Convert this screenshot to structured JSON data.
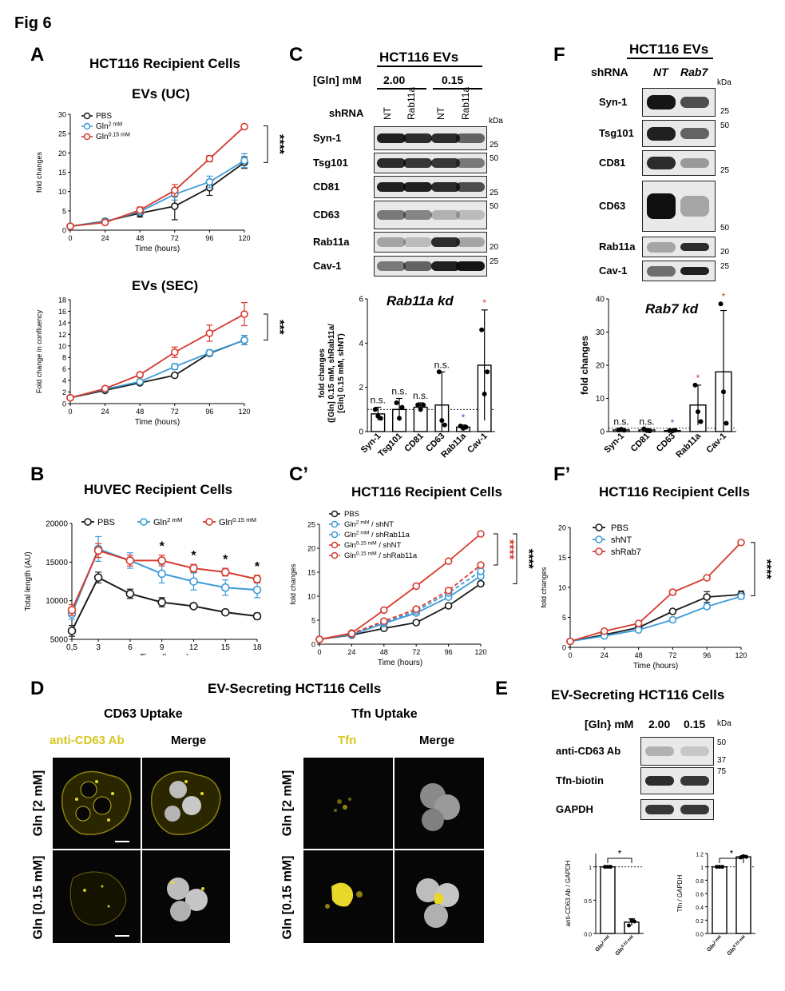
{
  "figure_title": "Fig 6",
  "colors": {
    "pbs": "#1a1a1a",
    "gln2": "#3c9ad6",
    "gln015": "#d63a2f",
    "blue_star": "#3b4fc4"
  },
  "panelA": {
    "label": "A",
    "title": "HCT116 Recipient Cells",
    "uc": {
      "subtitle": "EVs (UC)",
      "sig": "****"
    },
    "sec": {
      "subtitle": "EVs (SEC)",
      "sig": "***"
    }
  },
  "panelB": {
    "label": "B",
    "title": "HUVEC Recipient Cells"
  },
  "panelC": {
    "label": "C",
    "header": "HCT116 EVs",
    "gln_label": "[Gln] mM",
    "gln_values": [
      "2.00",
      "0.15"
    ],
    "shrna_label": "shRNA",
    "lanes": [
      "NT",
      "Rab11a",
      "NT",
      "Rab11a"
    ],
    "kda": "kDa",
    "blots": [
      "Syn-1",
      "Tsg101",
      "CD81",
      "CD63",
      "Rab11a",
      "Cav-1"
    ],
    "markers": [
      "25",
      "50",
      "25",
      "50",
      "20",
      "25"
    ]
  },
  "panelC2": {
    "label": "C’",
    "title": "HCT116 Recipient Cells"
  },
  "panelF": {
    "label": "F",
    "header": "HCT116 EVs",
    "shrna_label": "shRNA",
    "lanes": [
      "NT",
      "Rab7"
    ],
    "kda": "kDa",
    "blots": [
      "Syn-1",
      "Tsg101",
      "CD81",
      "CD63",
      "Rab11a",
      "Cav-1"
    ],
    "markers": [
      "25",
      "50",
      "25",
      "50",
      "20",
      "25"
    ]
  },
  "panelF2": {
    "label": "F’",
    "title": "HCT116 Recipient Cells"
  },
  "panelD": {
    "label": "D",
    "title": "EV-Secreting HCT116 Cells",
    "cd63_title": "CD63 Uptake",
    "cd63_channel": "anti-CD63 Ab",
    "merge": "Merge",
    "tfn_title": "Tfn Uptake",
    "tfn_channel": "Tfn",
    "row1": "Gln [2 mM]",
    "row2": "Gln [0.15 mM]"
  },
  "panelE": {
    "label": "E",
    "title": "EV-Secreting HCT116 Cells",
    "gln_label": "[Gln} mM",
    "gln_values": [
      "2.00",
      "0.15"
    ],
    "kda": "kDa",
    "blots": [
      "anti-CD63 Ab",
      "Tfn-biotin",
      "GAPDH"
    ],
    "markers": [
      "50",
      "37",
      "75"
    ]
  },
  "chart_data": [
    {
      "id": "A_uc",
      "type": "line",
      "title": "EVs (UC)",
      "xlabel": "Time (hours)",
      "ylabel": "fold changes",
      "x": [
        0,
        24,
        48,
        72,
        96,
        120
      ],
      "xlim": [
        0,
        120
      ],
      "ylim": [
        0,
        30
      ],
      "yticks": [
        0,
        5,
        10,
        15,
        20,
        25,
        30
      ],
      "xticks": [
        0,
        24,
        48,
        72,
        96,
        120
      ],
      "legend": [
        {
          "name": "PBS",
          "sup": ""
        },
        {
          "name": "Gln",
          "sup": "2 mM"
        },
        {
          "name": "Gln",
          "sup": "0.15 mM"
        }
      ],
      "series": [
        {
          "name": "PBS",
          "color": "#1a1a1a",
          "values": [
            1,
            2.3,
            4.4,
            6.2,
            11.0,
            17.5
          ],
          "err": [
            0.2,
            0.6,
            1.0,
            3.5,
            2.0,
            1.5
          ]
        },
        {
          "name": "Gln 2 mM",
          "color": "#3c9ad6",
          "values": [
            1,
            2.2,
            4.8,
            9.3,
            12.5,
            18.0
          ],
          "err": [
            0.2,
            0.6,
            0.8,
            1.5,
            1.5,
            1.8
          ]
        },
        {
          "name": "Gln 0.15 mM",
          "color": "#d63a2f",
          "values": [
            1,
            2.0,
            5.2,
            10.3,
            18.5,
            26.8
          ],
          "err": [
            0.2,
            0.5,
            0.8,
            1.5,
            0.8,
            0.4
          ]
        }
      ]
    },
    {
      "id": "A_sec",
      "type": "line",
      "title": "EVs (SEC)",
      "xlabel": "Time (hours)",
      "ylabel": "Fold change in confluency",
      "x": [
        0,
        24,
        48,
        72,
        96,
        120
      ],
      "xlim": [
        0,
        120
      ],
      "ylim": [
        0,
        18
      ],
      "yticks": [
        0,
        2,
        4,
        6,
        8,
        10,
        12,
        14,
        16,
        18
      ],
      "xticks": [
        0,
        24,
        48,
        72,
        96,
        120
      ],
      "series": [
        {
          "name": "PBS",
          "color": "#1a1a1a",
          "values": [
            1,
            2.3,
            3.6,
            4.9,
            8.7,
            11.0
          ],
          "err": [
            0.2,
            0.2,
            0.2,
            0.3,
            0.4,
            0.8
          ]
        },
        {
          "name": "Gln 2 mM",
          "color": "#3c9ad6",
          "values": [
            1,
            2.5,
            3.8,
            6.4,
            8.8,
            11.0
          ],
          "err": [
            0.2,
            0.2,
            0.3,
            0.5,
            0.5,
            0.8
          ]
        },
        {
          "name": "Gln 0.15 mM",
          "color": "#d63a2f",
          "values": [
            1,
            2.6,
            5.0,
            8.9,
            12.2,
            15.5
          ],
          "err": [
            0.2,
            0.3,
            0.4,
            0.9,
            1.4,
            2.0
          ]
        }
      ]
    },
    {
      "id": "B",
      "type": "line",
      "title": "HUVEC Recipient Cells",
      "xlabel": "Time (hours)",
      "ylabel": "Total length (AU)",
      "x": [
        0.5,
        3,
        6,
        9,
        12,
        15,
        18
      ],
      "xtick_labels": [
        "0,5",
        "3",
        "6",
        "9",
        "12",
        "15",
        "18"
      ],
      "ylim": [
        5000,
        20000
      ],
      "yticks": [
        5000,
        10000,
        15000,
        20000
      ],
      "legend": [
        {
          "name": "PBS",
          "sup": ""
        },
        {
          "name": "Gln",
          "sup": "2 mM"
        },
        {
          "name": "Gln",
          "sup": "0.15 mM"
        }
      ],
      "stars": [
        "",
        "",
        "",
        "*",
        "*",
        "*",
        "*"
      ],
      "series": [
        {
          "name": "PBS",
          "color": "#1a1a1a",
          "values": [
            6100,
            13000,
            10900,
            9800,
            9300,
            8500,
            8000
          ],
          "err": [
            700,
            700,
            600,
            600,
            200,
            200,
            400
          ]
        },
        {
          "name": "Gln 2 mM",
          "color": "#3c9ad6",
          "values": [
            8300,
            16700,
            15200,
            13500,
            12500,
            11700,
            11400
          ],
          "err": [
            700,
            1600,
            1000,
            1200,
            1100,
            1000,
            1000
          ]
        },
        {
          "name": "Gln 0.15 mM",
          "color": "#d63a2f",
          "values": [
            8800,
            16500,
            15200,
            15200,
            14200,
            13700,
            12800
          ],
          "err": [
            700,
            900,
            700,
            700,
            500,
            500,
            500
          ]
        }
      ]
    },
    {
      "id": "C_bar",
      "type": "bar",
      "title": "Rab11a kd",
      "ylabel_lines": [
        "fold changes",
        "([Gln] 0.15 mM, shRab11a/",
        "[Gln] 0.15 mM, shNT)"
      ],
      "categories": [
        "Syn-1",
        "Tsg101",
        "CD81",
        "CD63",
        "Rab11a",
        "Cav-1"
      ],
      "values": [
        0.8,
        1.0,
        1.1,
        1.2,
        0.2,
        3.0
      ],
      "err": [
        0.3,
        0.5,
        0.2,
        1.5,
        0.1,
        2.5
      ],
      "points": [
        [
          1.0,
          0.7,
          0.6
        ],
        [
          1.3,
          0.6,
          1.1
        ],
        [
          1.2,
          1.0,
          1.2
        ],
        [
          2.7,
          0.5,
          0.3
        ],
        [
          0.25,
          0.15,
          0.2
        ],
        [
          4.6,
          1.7,
          2.7
        ]
      ],
      "sig": [
        "n.s.",
        "n.s.",
        "n.s.",
        "n.s.",
        "*",
        "*"
      ],
      "sig_color": [
        "#000",
        "#000",
        "#000",
        "#000",
        "#3b4fc4",
        "#d63a2f"
      ],
      "ylim": [
        0,
        6
      ],
      "yticks": [
        0,
        2,
        4,
        6
      ],
      "refline": 1
    },
    {
      "id": "F_bar",
      "type": "bar",
      "title": "Rab7 kd",
      "ylabel": "fold changes",
      "categories": [
        "Syn-1",
        "CD81",
        "CD63",
        "Rab11a",
        "Cav-1"
      ],
      "values": [
        0.5,
        0.5,
        0.3,
        8.0,
        18.0
      ],
      "err": [
        0.3,
        0.4,
        0.2,
        6.0,
        18.5
      ],
      "points": [
        [
          0.5,
          0.7,
          0.4
        ],
        [
          0.8,
          0.3,
          0.2
        ],
        [
          0.3,
          0.2,
          0.4
        ],
        [
          14.0,
          6.0,
          3.0
        ],
        [
          38.5,
          12.0,
          2.5
        ]
      ],
      "sig": [
        "n.s.",
        "n.s.",
        "*",
        "*",
        "*"
      ],
      "sig_color": [
        "#000",
        "#000",
        "#3b4fc4",
        "#d63a2f",
        "#d63a2f"
      ],
      "ylim": [
        0,
        40
      ],
      "yticks": [
        0,
        10,
        20,
        30,
        40
      ],
      "refline": 1
    },
    {
      "id": "C2",
      "type": "line",
      "title": "HCT116 Recipient Cells",
      "xlabel": "Time (hours)",
      "ylabel": "fold changes",
      "x": [
        0,
        24,
        48,
        72,
        96,
        120
      ],
      "ylim": [
        0,
        25
      ],
      "yticks": [
        0,
        5,
        10,
        15,
        20,
        25
      ],
      "xticks": [
        0,
        24,
        48,
        72,
        96,
        120
      ],
      "legend": [
        {
          "name": "PBS",
          "sup": "",
          "suffix": ""
        },
        {
          "name": "Gln",
          "sup": "2 mM",
          "suffix": " / shNT"
        },
        {
          "name": "Gln",
          "sup": "2 mM",
          "suffix": " / shRab11a"
        },
        {
          "name": "Gln",
          "sup": "0.15 mM",
          "suffix": " / shNT"
        },
        {
          "name": "Gln",
          "sup": "0.15 mM",
          "suffix": " / shRab11a"
        }
      ],
      "sig_red": "****",
      "sig_black": "****",
      "series": [
        {
          "name": "PBS",
          "color": "#1a1a1a",
          "dash": false,
          "values": [
            1,
            1.9,
            3.3,
            4.5,
            8.0,
            12.6
          ]
        },
        {
          "name": "Gln 2 mM / shNT",
          "color": "#3c9ad6",
          "dash": false,
          "values": [
            1,
            2.0,
            4.3,
            6.5,
            9.8,
            14.2
          ]
        },
        {
          "name": "Gln 2 mM / shRab11a",
          "color": "#3c9ad6",
          "dash": true,
          "values": [
            1,
            2.1,
            4.5,
            6.9,
            10.7,
            15.2
          ]
        },
        {
          "name": "Gln 0.15 mM / shNT",
          "color": "#d63a2f",
          "dash": false,
          "values": [
            1,
            2.3,
            7.1,
            12.1,
            17.3,
            23.0
          ]
        },
        {
          "name": "Gln 0.15 mM / shRab11a",
          "color": "#d63a2f",
          "dash": true,
          "values": [
            1,
            2.2,
            4.8,
            7.3,
            11.2,
            16.5
          ]
        }
      ]
    },
    {
      "id": "F2",
      "type": "line",
      "title": "HCT116 Recipient Cells",
      "xlabel": "Time (hours)",
      "ylabel": "fold changes",
      "x": [
        0,
        24,
        48,
        72,
        96,
        120
      ],
      "ylim": [
        0,
        20
      ],
      "yticks": [
        0,
        5,
        10,
        15,
        20
      ],
      "xticks": [
        0,
        24,
        48,
        72,
        96,
        120
      ],
      "legend": [
        {
          "name": "PBS",
          "sup": "",
          "suffix": ""
        },
        {
          "name": "shNT",
          "sup": "",
          "suffix": ""
        },
        {
          "name": "shRab7",
          "sup": "",
          "suffix": ""
        }
      ],
      "sig": "****",
      "series": [
        {
          "name": "PBS",
          "color": "#1a1a1a",
          "values": [
            1,
            2.1,
            3.3,
            6.0,
            8.4,
            8.8
          ],
          "err": [
            0,
            0,
            0,
            0.2,
            0.9,
            0.6
          ]
        },
        {
          "name": "shNT",
          "color": "#3c9ad6",
          "values": [
            1,
            1.9,
            2.9,
            4.6,
            6.8,
            8.5
          ],
          "err": [
            0,
            0,
            0,
            0,
            0.2,
            0.4
          ]
        },
        {
          "name": "shRab7",
          "color": "#d63a2f",
          "values": [
            1,
            2.7,
            4.0,
            9.2,
            11.6,
            17.5
          ],
          "err": [
            0,
            0.1,
            0.2,
            0.4,
            0.2,
            0.2
          ]
        }
      ]
    },
    {
      "id": "E_bar1",
      "type": "bar",
      "ylabel": "anti-CD63 Ab / GAPDH",
      "categories": [
        {
          "name": "Gln",
          "sup": "2 mM"
        },
        {
          "name": "Gln",
          "sup": "0.15 mM"
        }
      ],
      "values": [
        1.0,
        0.17
      ],
      "err": [
        0.0,
        0.05
      ],
      "points": [
        [
          1.0,
          1.0,
          1.0
        ],
        [
          0.12,
          0.2,
          0.18
        ]
      ],
      "ylim": [
        0,
        1.2
      ],
      "yticks": [
        0.0,
        0.5,
        1.0
      ],
      "ytick_labels": [
        "0.0",
        "0.5",
        "1"
      ],
      "refline": 1,
      "sig": "*"
    },
    {
      "id": "E_bar2",
      "type": "bar",
      "ylabel": "Tfn / GAPDH",
      "categories": [
        {
          "name": "Gln",
          "sup": "2 mM"
        },
        {
          "name": "Gln",
          "sup": "0.15 mM"
        }
      ],
      "values": [
        1.0,
        1.15
      ],
      "err": [
        0.0,
        0.02
      ],
      "points": [
        [
          1.0,
          1.0,
          1.0
        ],
        [
          1.14,
          1.16,
          1.15
        ]
      ],
      "ylim": [
        0,
        1.2
      ],
      "yticks": [
        0.0,
        0.2,
        0.4,
        0.6,
        0.8,
        1.0,
        1.2
      ],
      "ytick_labels": [
        "0.0",
        "0.2",
        "0.4",
        "0.6",
        "0.8",
        "1",
        "1.2"
      ],
      "refline": 1,
      "sig": "*"
    }
  ]
}
